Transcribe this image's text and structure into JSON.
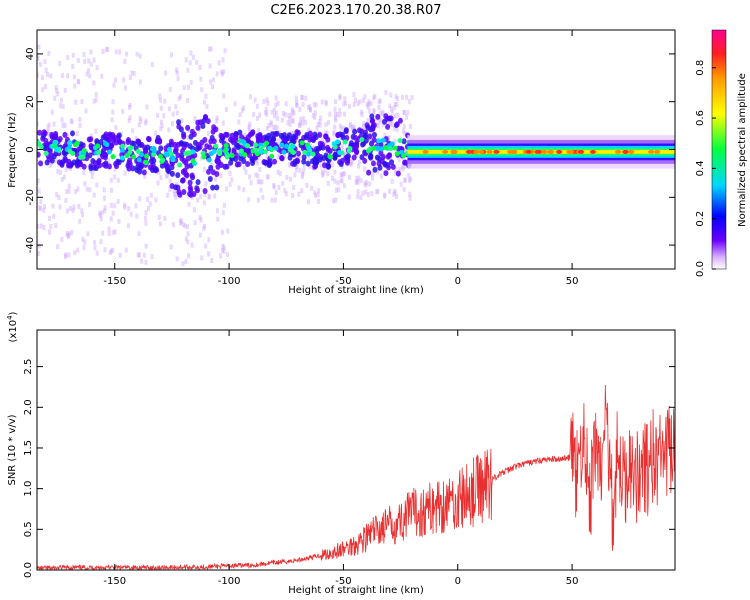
{
  "figure": {
    "title": "C2E6.2023.170.20.38.R07"
  },
  "chart_data": [
    {
      "type": "heatmap",
      "xlabel": "Height of straight line (km)",
      "ylabel": "Frequency (Hz)",
      "xlim": [
        -184,
        95
      ],
      "ylim": [
        -50,
        50
      ],
      "xticks": [
        -150,
        -100,
        -50,
        0,
        50
      ],
      "yticks": [
        -40,
        -20,
        0,
        20,
        40
      ],
      "ridge": [
        [
          -184,
          1
        ],
        [
          -170,
          0
        ],
        [
          -160,
          -1
        ],
        [
          -150,
          0
        ],
        [
          -140,
          -3
        ],
        [
          -130,
          -2
        ],
        [
          -120,
          -4
        ],
        [
          -110,
          -2
        ],
        [
          -100,
          0
        ],
        [
          -90,
          1
        ],
        [
          -80,
          0
        ],
        [
          -70,
          1
        ],
        [
          -60,
          -1
        ],
        [
          -50,
          1
        ],
        [
          -40,
          2
        ],
        [
          -30,
          2
        ],
        [
          -22,
          0
        ],
        [
          -10,
          0
        ],
        [
          0,
          -1
        ],
        [
          10,
          -1
        ],
        [
          20,
          -1
        ],
        [
          30,
          -1
        ],
        [
          45,
          -1
        ],
        [
          60,
          -1
        ],
        [
          75,
          -1
        ],
        [
          95,
          -1
        ]
      ],
      "colorbar": {
        "label": "Normalized spectral amplitude",
        "range": [
          0,
          0.95
        ],
        "ticks": [
          "0.0",
          "0.2",
          "0.4",
          "0.6",
          "0.8"
        ]
      },
      "grid": false
    },
    {
      "type": "line",
      "xlabel": "Height of straight line (km)",
      "ylabel": "SNR (10 * v/v)",
      "multiplier": "(x10",
      "multiplier_exp": "4",
      "xlim": [
        -184,
        95
      ],
      "ylim": [
        0,
        2.95
      ],
      "xticks": [
        -150,
        -100,
        -50,
        0,
        50
      ],
      "yticks": [
        "0.0",
        "0.5",
        "1.0",
        "1.5",
        "2.0",
        "2.5"
      ],
      "series": [
        {
          "color": "#e83030",
          "x": [
            -184,
            -170,
            -150,
            -130,
            -110,
            -100,
            -90,
            -80,
            -70,
            -60,
            -50,
            -45,
            -40,
            -35,
            -30,
            -25,
            -20,
            -15,
            -10,
            -5,
            0,
            5,
            10,
            15,
            20,
            25,
            30,
            35,
            40,
            45,
            49,
            50,
            52,
            55,
            58,
            60,
            63,
            65,
            68,
            70,
            73,
            75,
            78,
            80,
            83,
            85,
            88,
            90,
            93,
            95
          ],
          "y": [
            0.02,
            0.03,
            0.03,
            0.03,
            0.04,
            0.05,
            0.06,
            0.09,
            0.12,
            0.18,
            0.25,
            0.32,
            0.4,
            0.5,
            0.55,
            0.6,
            0.7,
            0.72,
            0.78,
            0.82,
            0.85,
            0.92,
            1.02,
            1.12,
            1.2,
            1.27,
            1.31,
            1.34,
            1.36,
            1.37,
            1.38,
            1.4,
            1.1,
            1.7,
            0.8,
            1.6,
            1.2,
            1.9,
            0.7,
            1.5,
            1.0,
            1.4,
            1.1,
            1.3,
            1.2,
            1.4,
            1.3,
            1.4,
            1.45,
            1.38
          ]
        }
      ],
      "grid": false
    }
  ]
}
